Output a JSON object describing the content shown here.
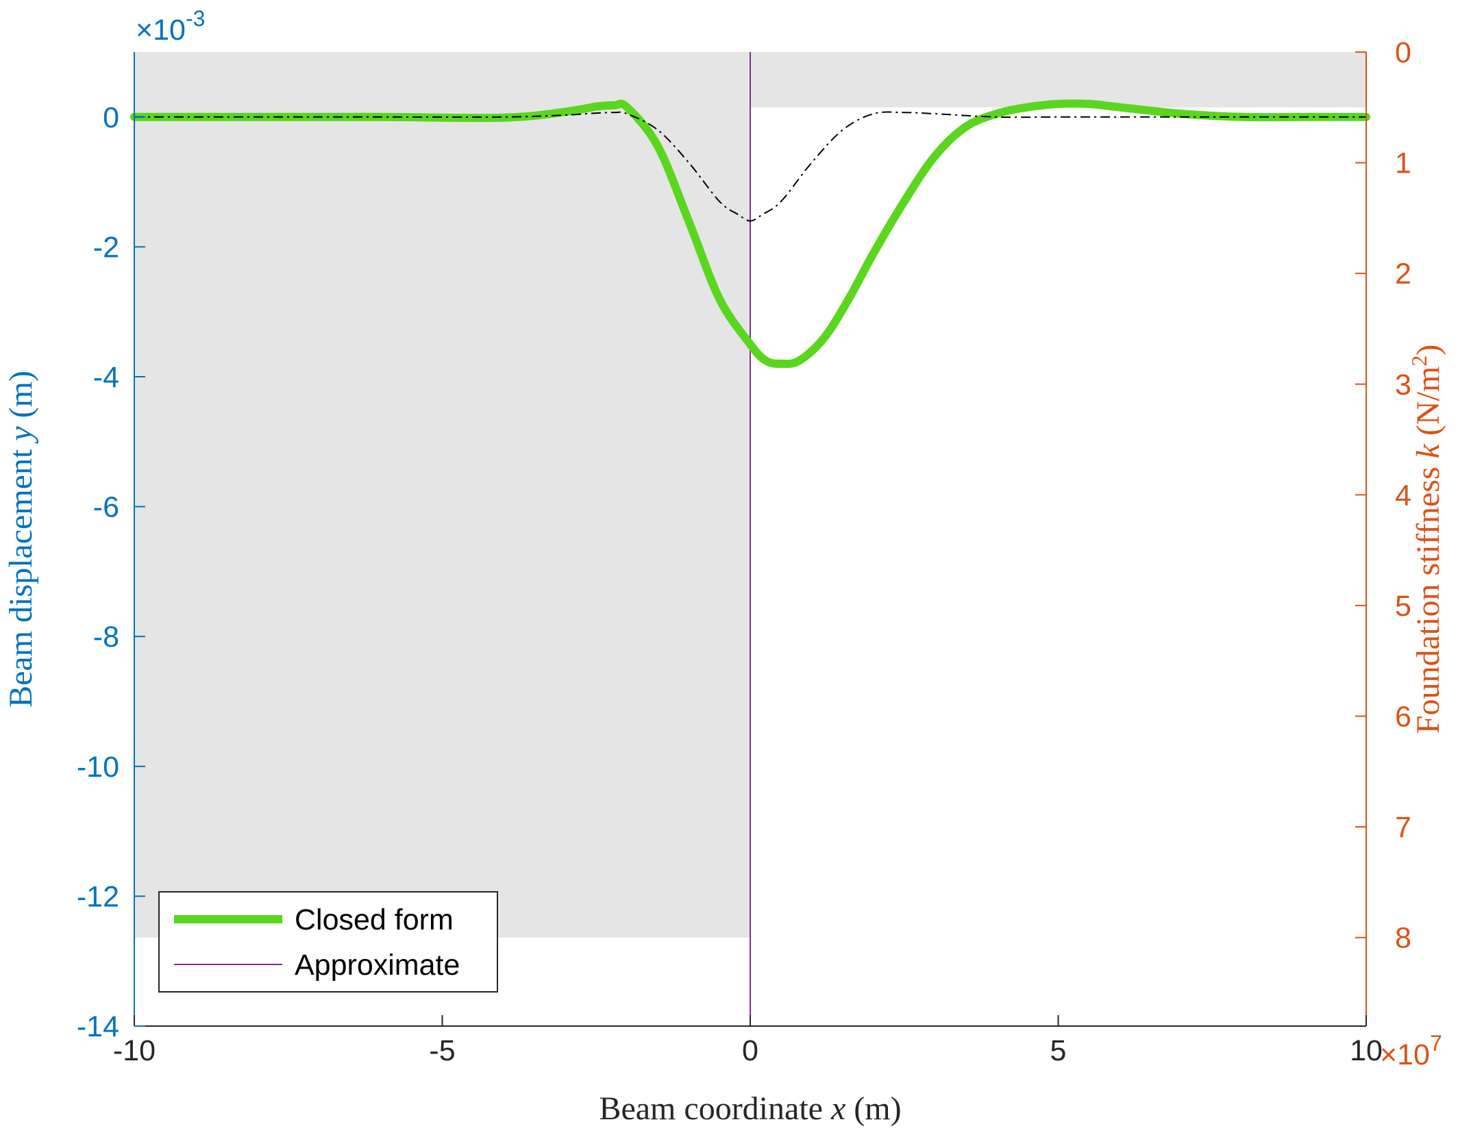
{
  "chart_data": {
    "type": "line",
    "xlabel": "Beam coordinate x (m)",
    "xlabel_parts": [
      "Beam coordinate ",
      "x",
      " (m)"
    ],
    "ylabel_left": "Beam displacement y (m)",
    "ylabel_left_parts": [
      "Beam displacement ",
      "y",
      " (m)"
    ],
    "ylabel_right": "Foundation stiffness k (N/m2)",
    "ylabel_right_parts": [
      "Foundation stiffness ",
      "k",
      " (N/m",
      "2",
      ")"
    ],
    "xlim": [
      -10,
      10
    ],
    "ylim_left": [
      -0.014,
      0.001
    ],
    "ylim_right": [
      88000000.0,
      0
    ],
    "x_ticks": [
      -10,
      -5,
      0,
      5,
      10
    ],
    "x_tick_labels": [
      "-10",
      "-5",
      "0",
      "5",
      "10"
    ],
    "y_left_ticks": [
      0,
      -0.002,
      -0.004,
      -0.006,
      -0.008,
      -0.01,
      -0.012,
      -0.014
    ],
    "y_left_tick_labels": [
      "0",
      "-2",
      "-4",
      "-6",
      "-8",
      "-10",
      "-12",
      "-14"
    ],
    "y_left_exponent": "-3",
    "y_right_ticks": [
      0,
      10000000.0,
      20000000.0,
      30000000.0,
      40000000.0,
      50000000.0,
      60000000.0,
      70000000.0,
      80000000.0
    ],
    "y_right_tick_labels": [
      "0",
      "1",
      "2",
      "3",
      "4",
      "5",
      "6",
      "7",
      "8"
    ],
    "y_right_exponent": "7",
    "multiplier_base": "×10",
    "colors": {
      "left_axis": "#0072BD",
      "right_axis": "#D95319",
      "closed_form": "#5BD61E",
      "approximate": "#000000",
      "stiffness": "#7E2F8E",
      "stiffness_fill": "#E5E5E5"
    },
    "legend": {
      "placement": "bottom-left",
      "entries": [
        "Closed form",
        "Approximate"
      ]
    },
    "series": [
      {
        "name": "Closed form",
        "axis": "left",
        "x": [
          -10,
          -8,
          -6,
          -4,
          -3,
          -2.5,
          -2.2,
          -2,
          -1.5,
          -1,
          -0.5,
          0,
          0.25,
          0.5,
          0.8,
          1.2,
          1.6,
          2,
          2.5,
          3,
          3.5,
          4,
          4.5,
          5,
          5.5,
          6,
          7,
          8,
          9,
          10
        ],
        "y": [
          0,
          0,
          0,
          -1e-05,
          8e-05,
          0.00016,
          0.00018,
          0.00015,
          -0.00045,
          -0.0016,
          -0.0028,
          -0.0035,
          -0.00375,
          -0.0038,
          -0.00375,
          -0.0034,
          -0.0028,
          -0.0021,
          -0.0013,
          -0.0006,
          -0.00015,
          5e-05,
          0.00015,
          0.0002,
          0.0002,
          0.00015,
          5e-05,
          0,
          0,
          0
        ]
      },
      {
        "name": "Approximate",
        "axis": "left",
        "x": [
          -10,
          -6,
          -4,
          -3,
          -2.5,
          -2.2,
          -2,
          -1.5,
          -1,
          -0.5,
          -0.2,
          0,
          0.2,
          0.5,
          1,
          1.5,
          2,
          2.5,
          3,
          4,
          5,
          6,
          7,
          8,
          10
        ],
        "y": [
          0,
          0,
          0,
          3e-05,
          6e-05,
          7e-05,
          5e-05,
          -0.0002,
          -0.0007,
          -0.0013,
          -0.0015,
          -0.0016,
          -0.0015,
          -0.0013,
          -0.0007,
          -0.0002,
          5e-05,
          7e-05,
          5e-05,
          0,
          0,
          0,
          0,
          0,
          0
        ]
      },
      {
        "axis": "right",
        "x": [
          -10,
          0,
          0,
          10
        ],
        "y": [
          80000000.0,
          80000000.0,
          5000000.0,
          5000000.0
        ]
      }
    ]
  }
}
